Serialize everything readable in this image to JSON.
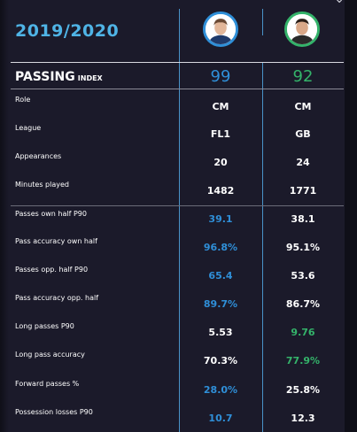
{
  "header": {
    "season": "2019/2020",
    "corner_icon": "chevron-down-icon"
  },
  "players": [
    {
      "avatar_icon": "player-portrait-icon",
      "accent": "#2f8fd8"
    },
    {
      "avatar_icon": "player-portrait-icon",
      "accent": "#34b36a"
    }
  ],
  "index": {
    "title": "PASSING",
    "subtitle": "INDEX",
    "values": [
      {
        "value": "99",
        "color": "#2f8fd8"
      },
      {
        "value": "92",
        "color": "#34b36a"
      }
    ]
  },
  "profile_rows": [
    {
      "label": "Role",
      "values": [
        "CM",
        "CM"
      ]
    },
    {
      "label": "League",
      "values": [
        "FL1",
        "GB"
      ]
    },
    {
      "label": "Appearances",
      "values": [
        "20",
        "24"
      ]
    },
    {
      "label": "Minutes played",
      "values": [
        "1482",
        "1771"
      ]
    }
  ],
  "stat_rows": [
    {
      "label": "Passes own half P90",
      "values": [
        "39.1",
        "38.1"
      ],
      "highlight": "blue"
    },
    {
      "label": "Pass accuracy own half",
      "values": [
        "96.8%",
        "95.1%"
      ],
      "highlight": "blue"
    },
    {
      "label": "Passes opp. half P90",
      "values": [
        "65.4",
        "53.6"
      ],
      "highlight": "blue"
    },
    {
      "label": "Pass accuracy opp. half",
      "values": [
        "89.7%",
        "86.7%"
      ],
      "highlight": "blue"
    },
    {
      "label": "Long passes P90",
      "values": [
        "5.53",
        "9.76"
      ],
      "highlight": "green"
    },
    {
      "label": "Long pass accuracy",
      "values": [
        "70.3%",
        "77.9%"
      ],
      "highlight": "green"
    },
    {
      "label": "Forward passes %",
      "values": [
        "28.0%",
        "25.8%"
      ],
      "highlight": "blue"
    },
    {
      "label": "Possession losses P90",
      "values": [
        "10.7",
        "12.3"
      ],
      "highlight": "blue"
    }
  ],
  "colors": {
    "accent_blue": "#2f8fd8",
    "accent_green": "#34b36a",
    "season_blue": "#4fb4e6",
    "background": "#1b1a2a"
  }
}
